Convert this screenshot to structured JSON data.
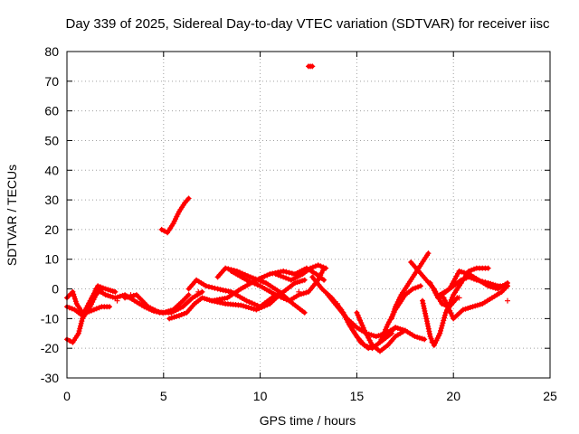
{
  "chart_data": {
    "type": "scatter",
    "title": "Day 339 of 2025, Sidereal Day-to-day VTEC variation (SDTVAR) for receiver iisc",
    "xlabel": "GPS time / hours",
    "ylabel": "SDTVAR / TECUs",
    "xlim": [
      0,
      25
    ],
    "ylim": [
      -30,
      80
    ],
    "xticks": [
      0,
      5,
      10,
      15,
      20,
      25
    ],
    "yticks": [
      -30,
      -20,
      -10,
      0,
      10,
      20,
      30,
      40,
      50,
      60,
      70,
      80
    ],
    "grid": true,
    "marker": "+",
    "color": "#ff0000",
    "series": [
      {
        "name": "trace-a",
        "points": [
          [
            0,
            -17
          ],
          [
            0.3,
            -18
          ],
          [
            0.6,
            -15
          ],
          [
            0.8,
            -10
          ],
          [
            1.0,
            -8
          ],
          [
            1.4,
            -7
          ],
          [
            1.8,
            -6
          ],
          [
            2.2,
            -6
          ]
        ]
      },
      {
        "name": "trace-b",
        "points": [
          [
            0,
            -3
          ],
          [
            0.3,
            -1
          ],
          [
            0.5,
            -5
          ],
          [
            0.8,
            -8
          ],
          [
            1.2,
            -6
          ],
          [
            1.5,
            -2
          ],
          [
            1.8,
            0
          ]
        ]
      },
      {
        "name": "trace-c",
        "points": [
          [
            0,
            -6
          ],
          [
            0.4,
            -7
          ],
          [
            0.8,
            -9
          ],
          [
            1.2,
            -4
          ],
          [
            1.6,
            1
          ],
          [
            2.0,
            0
          ],
          [
            2.5,
            -1
          ]
        ]
      },
      {
        "name": "trace-d",
        "points": [
          [
            1.5,
            0
          ],
          [
            2.0,
            -2
          ],
          [
            2.5,
            -3
          ],
          [
            3.0,
            -2
          ],
          [
            3.5,
            -4
          ],
          [
            4.0,
            -6
          ],
          [
            4.5,
            -7.5
          ],
          [
            5.0,
            -8
          ],
          [
            5.5,
            -7
          ],
          [
            6.0,
            -4
          ],
          [
            6.3,
            -2
          ]
        ]
      },
      {
        "name": "trace-e",
        "points": [
          [
            3.0,
            -3
          ],
          [
            3.6,
            -2
          ],
          [
            4.2,
            -6
          ],
          [
            4.8,
            -8
          ],
          [
            5.4,
            -8
          ],
          [
            6.0,
            -6
          ],
          [
            6.5,
            -3
          ],
          [
            7.0,
            -1
          ]
        ]
      },
      {
        "name": "trace-f",
        "points": [
          [
            5.3,
            -10
          ],
          [
            5.8,
            -9
          ],
          [
            6.2,
            -8
          ],
          [
            6.6,
            -5
          ],
          [
            7.0,
            -3
          ],
          [
            7.5,
            -4
          ],
          [
            8.2,
            -5
          ],
          [
            9.0,
            -5.5
          ],
          [
            9.8,
            -7
          ],
          [
            10.5,
            -5
          ],
          [
            11.0,
            -2
          ]
        ]
      },
      {
        "name": "trace-g",
        "points": [
          [
            6.3,
            0
          ],
          [
            6.7,
            3
          ],
          [
            7.2,
            1
          ],
          [
            7.8,
            0
          ],
          [
            8.5,
            -1
          ],
          [
            9.3,
            -4
          ],
          [
            10.0,
            -6
          ],
          [
            10.6,
            -3
          ],
          [
            11.2,
            -1
          ],
          [
            11.8,
            2
          ],
          [
            12.3,
            3
          ]
        ]
      },
      {
        "name": "trace-h",
        "points": [
          [
            7.8,
            4
          ],
          [
            8.2,
            7
          ],
          [
            8.8,
            6
          ],
          [
            9.5,
            4
          ],
          [
            10.3,
            2
          ],
          [
            11.0,
            -1
          ],
          [
            11.7,
            -5
          ],
          [
            12.3,
            -8
          ]
        ]
      },
      {
        "name": "trace-i",
        "points": [
          [
            7.5,
            -4
          ],
          [
            8.3,
            -3
          ],
          [
            9.0,
            0
          ],
          [
            9.8,
            3
          ],
          [
            10.5,
            5
          ],
          [
            11.2,
            6
          ],
          [
            11.8,
            5
          ],
          [
            12.4,
            7
          ],
          [
            12.9,
            5
          ],
          [
            13.3,
            3
          ]
        ]
      },
      {
        "name": "trace-j",
        "points": [
          [
            8.5,
            6
          ],
          [
            9.3,
            3
          ],
          [
            10.0,
            1
          ],
          [
            10.8,
            -2
          ],
          [
            11.5,
            -4
          ],
          [
            12.0,
            -2
          ],
          [
            12.5,
            -1
          ],
          [
            13.0,
            3
          ],
          [
            13.3,
            7
          ]
        ]
      },
      {
        "name": "trace-k",
        "points": [
          [
            10.8,
            5
          ],
          [
            11.6,
            3
          ],
          [
            12.2,
            5
          ],
          [
            12.6,
            7
          ],
          [
            13.0,
            8
          ],
          [
            13.4,
            7
          ]
        ]
      },
      {
        "name": "trace-l",
        "points": [
          [
            12.7,
            4
          ],
          [
            13.2,
            0
          ],
          [
            13.7,
            -3
          ],
          [
            14.2,
            -7
          ],
          [
            14.6,
            -12
          ],
          [
            15.0,
            -16
          ],
          [
            15.4,
            -19
          ],
          [
            15.8,
            -20
          ]
        ]
      },
      {
        "name": "trace-m",
        "points": [
          [
            13.5,
            -2
          ],
          [
            14.0,
            -6
          ],
          [
            14.5,
            -10
          ],
          [
            15.0,
            -13
          ],
          [
            15.5,
            -15
          ],
          [
            16.0,
            -16
          ],
          [
            16.5,
            -15
          ],
          [
            17.0,
            -13
          ]
        ]
      },
      {
        "name": "trace-n",
        "points": [
          [
            14.3,
            -8
          ],
          [
            14.8,
            -14
          ],
          [
            15.2,
            -18
          ],
          [
            15.6,
            -20
          ],
          [
            16.0,
            -19
          ],
          [
            16.4,
            -17
          ],
          [
            16.8,
            -15
          ]
        ]
      },
      {
        "name": "trace-o",
        "points": [
          [
            15.0,
            -8
          ],
          [
            15.4,
            -14
          ],
          [
            15.8,
            -19
          ],
          [
            16.2,
            -21
          ],
          [
            16.6,
            -19
          ],
          [
            17.0,
            -16
          ],
          [
            17.5,
            -14
          ]
        ]
      },
      {
        "name": "trace-p",
        "points": [
          [
            16.8,
            -10
          ],
          [
            17.0,
            -6
          ],
          [
            17.3,
            -2
          ],
          [
            17.6,
            1
          ],
          [
            17.9,
            4
          ],
          [
            18.2,
            7
          ],
          [
            18.5,
            10
          ],
          [
            18.7,
            12
          ]
        ]
      },
      {
        "name": "trace-q",
        "points": [
          [
            16.2,
            -18
          ],
          [
            16.6,
            -12
          ],
          [
            17.0,
            -7
          ],
          [
            17.5,
            -2
          ],
          [
            17.9,
            0
          ],
          [
            18.3,
            1
          ]
        ]
      },
      {
        "name": "trace-r",
        "points": [
          [
            16.5,
            -16
          ],
          [
            17.0,
            -13
          ],
          [
            17.5,
            -14
          ],
          [
            18.0,
            -16
          ],
          [
            18.5,
            -17
          ]
        ]
      },
      {
        "name": "trace-s",
        "points": [
          [
            17.8,
            9
          ],
          [
            18.2,
            6
          ],
          [
            18.6,
            3
          ],
          [
            19.0,
            0
          ],
          [
            19.4,
            -5
          ],
          [
            19.8,
            -6
          ],
          [
            20.2,
            -3
          ]
        ]
      },
      {
        "name": "trace-t",
        "points": [
          [
            18.4,
            -4
          ],
          [
            18.6,
            -10
          ],
          [
            18.8,
            -16
          ],
          [
            19.0,
            -19
          ],
          [
            19.3,
            -15
          ],
          [
            19.6,
            -8
          ],
          [
            20.0,
            -2
          ],
          [
            20.4,
            2
          ],
          [
            20.8,
            6
          ],
          [
            21.2,
            7
          ],
          [
            21.8,
            7
          ]
        ]
      },
      {
        "name": "trace-u",
        "points": [
          [
            18.8,
            2
          ],
          [
            19.2,
            -3
          ],
          [
            19.6,
            -1
          ],
          [
            20.0,
            1
          ],
          [
            20.4,
            3
          ],
          [
            20.8,
            4
          ],
          [
            21.2,
            3
          ],
          [
            21.8,
            2
          ],
          [
            22.3,
            1
          ],
          [
            22.8,
            1
          ]
        ]
      },
      {
        "name": "trace-v",
        "points": [
          [
            19.3,
            -2
          ],
          [
            19.8,
            0
          ],
          [
            20.3,
            6
          ],
          [
            20.8,
            5
          ],
          [
            21.3,
            3
          ],
          [
            21.8,
            1
          ],
          [
            22.3,
            0
          ],
          [
            22.8,
            2
          ]
        ]
      },
      {
        "name": "trace-w",
        "points": [
          [
            19.5,
            -3
          ],
          [
            20.0,
            -10
          ],
          [
            20.5,
            -7
          ],
          [
            21.0,
            -6
          ],
          [
            21.5,
            -5
          ],
          [
            22.0,
            -3
          ],
          [
            22.5,
            -1
          ],
          [
            22.8,
            1
          ]
        ]
      },
      {
        "name": "trace-x",
        "points": [
          [
            4.9,
            20
          ],
          [
            5.2,
            19
          ],
          [
            5.5,
            22
          ],
          [
            5.8,
            26
          ],
          [
            6.1,
            29
          ],
          [
            6.3,
            30.5
          ]
        ]
      },
      {
        "name": "trace-y",
        "points": [
          [
            12.5,
            75
          ],
          [
            12.6,
            75
          ],
          [
            12.7,
            75
          ]
        ]
      },
      {
        "name": "scatter-outliers",
        "points": [
          [
            1.2,
            -7
          ],
          [
            2.6,
            -4
          ],
          [
            3.3,
            -2
          ],
          [
            6.8,
            -1
          ],
          [
            12.0,
            -1
          ],
          [
            14.0,
            -5
          ],
          [
            18.9,
            -18
          ],
          [
            20.3,
            -3
          ],
          [
            22.8,
            -4
          ]
        ]
      }
    ]
  }
}
